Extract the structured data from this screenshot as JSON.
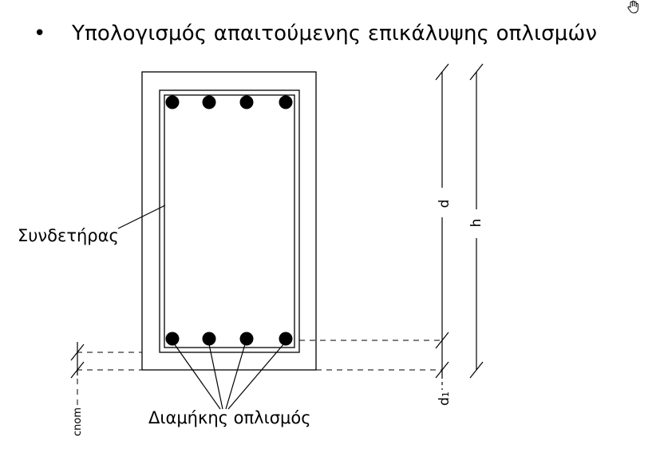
{
  "heading": {
    "bullet": "•",
    "text": "Υπολογισμός απαιτούμενης επικάλυψης οπλισμών"
  },
  "labels": {
    "stirrup": "Συνδετήρας",
    "longitudinal": "Διαμήκης οπλισμός",
    "d": "d",
    "h": "h",
    "d1_main": "d",
    "d1_sub": "1",
    "cnom": "cnom"
  },
  "icons": {
    "cursor": "hand-cursor-icon"
  },
  "colors": {
    "line": "#000000",
    "background": "#ffffff"
  }
}
